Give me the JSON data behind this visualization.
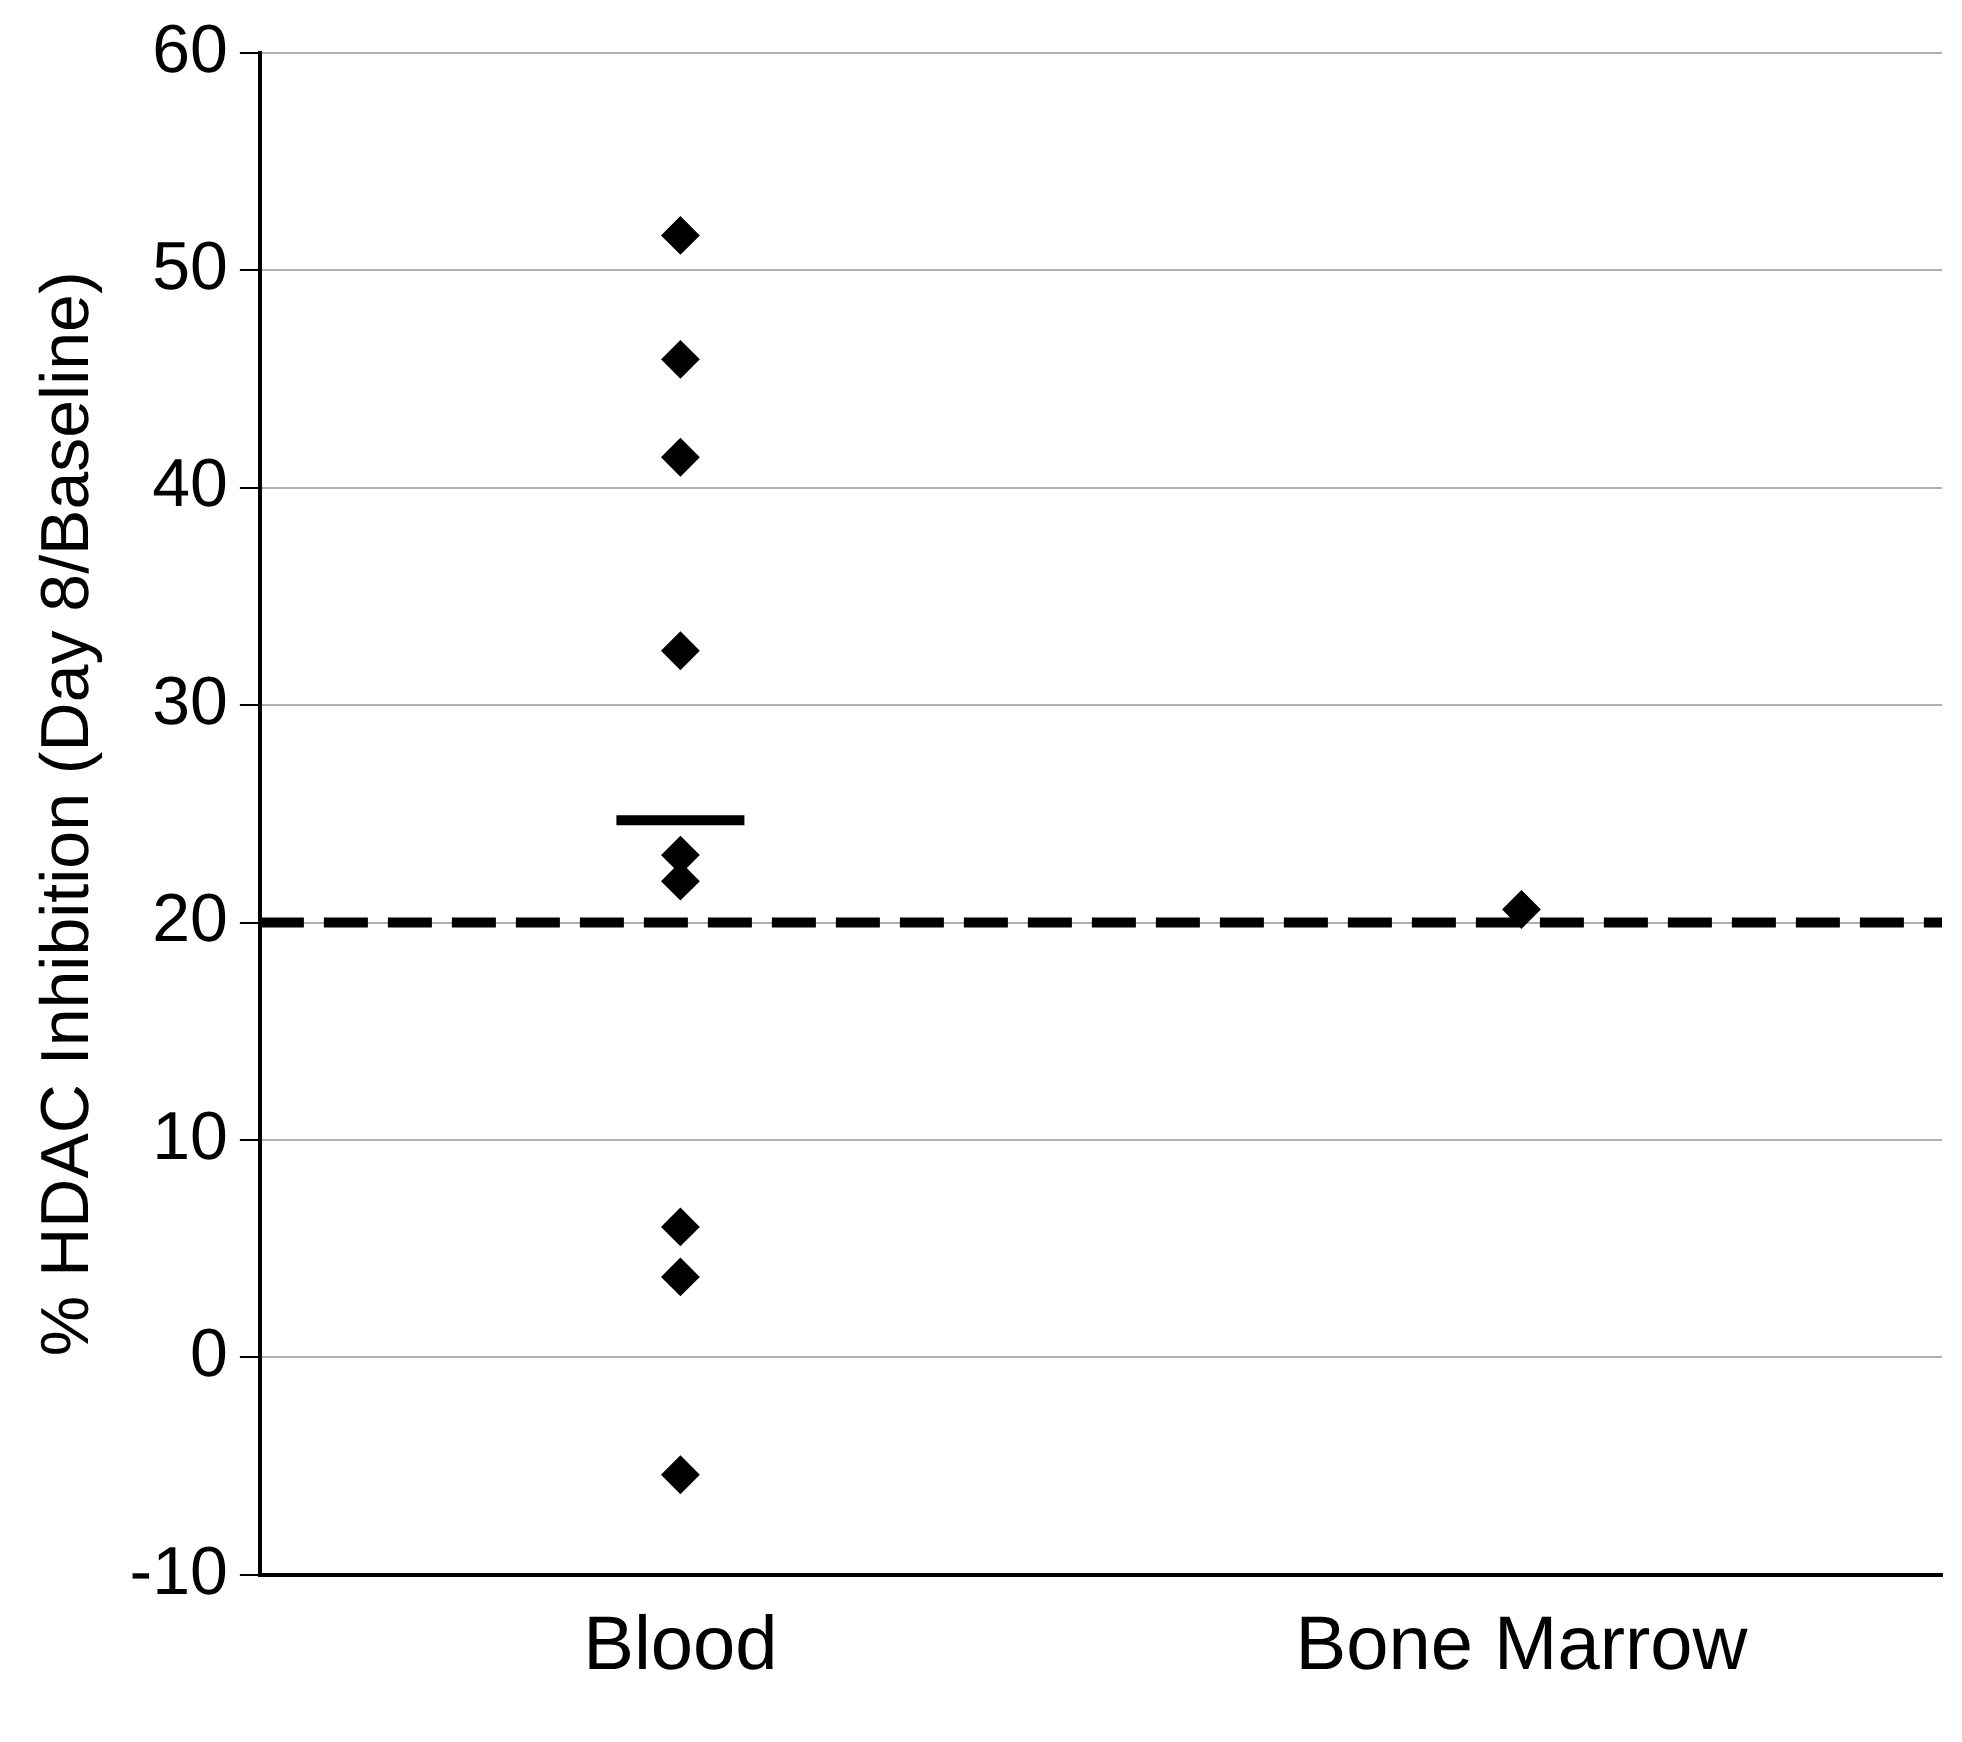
{
  "chart_data": {
    "type": "scatter",
    "ylabel": "% HDAC Inhibition (Day 8/Baseline)",
    "categories": [
      "Blood",
      "Bone Marrow"
    ],
    "series": [
      {
        "color": "#000000",
        "marker": "diamond",
        "x": [
          "Blood",
          "Blood",
          "Blood",
          "Blood",
          "Blood",
          "Blood",
          "Blood",
          "Blood",
          "Blood",
          "Bone Marrow"
        ],
        "values": [
          51.6,
          45.9,
          41.4,
          32.5,
          23.1,
          21.9,
          6.0,
          3.7,
          -5.4,
          20.6
        ]
      },
      {
        "type": "box",
        "color": "#000000",
        "boxes": [
          {
            "low": 24.7,
            "q1": 24.7,
            "median": 24.7,
            "q3": 24.7,
            "high": 24.7
          },
          null
        ]
      }
    ],
    "ylim": [
      -10,
      60
    ],
    "yticks": [
      -10,
      0,
      10,
      20,
      30,
      40,
      50,
      60
    ],
    "grid": "y",
    "legend": false,
    "ref_lines": [
      {
        "axis": "y",
        "value": 20,
        "color": "#000000",
        "line_style": "dashed"
      }
    ]
  }
}
